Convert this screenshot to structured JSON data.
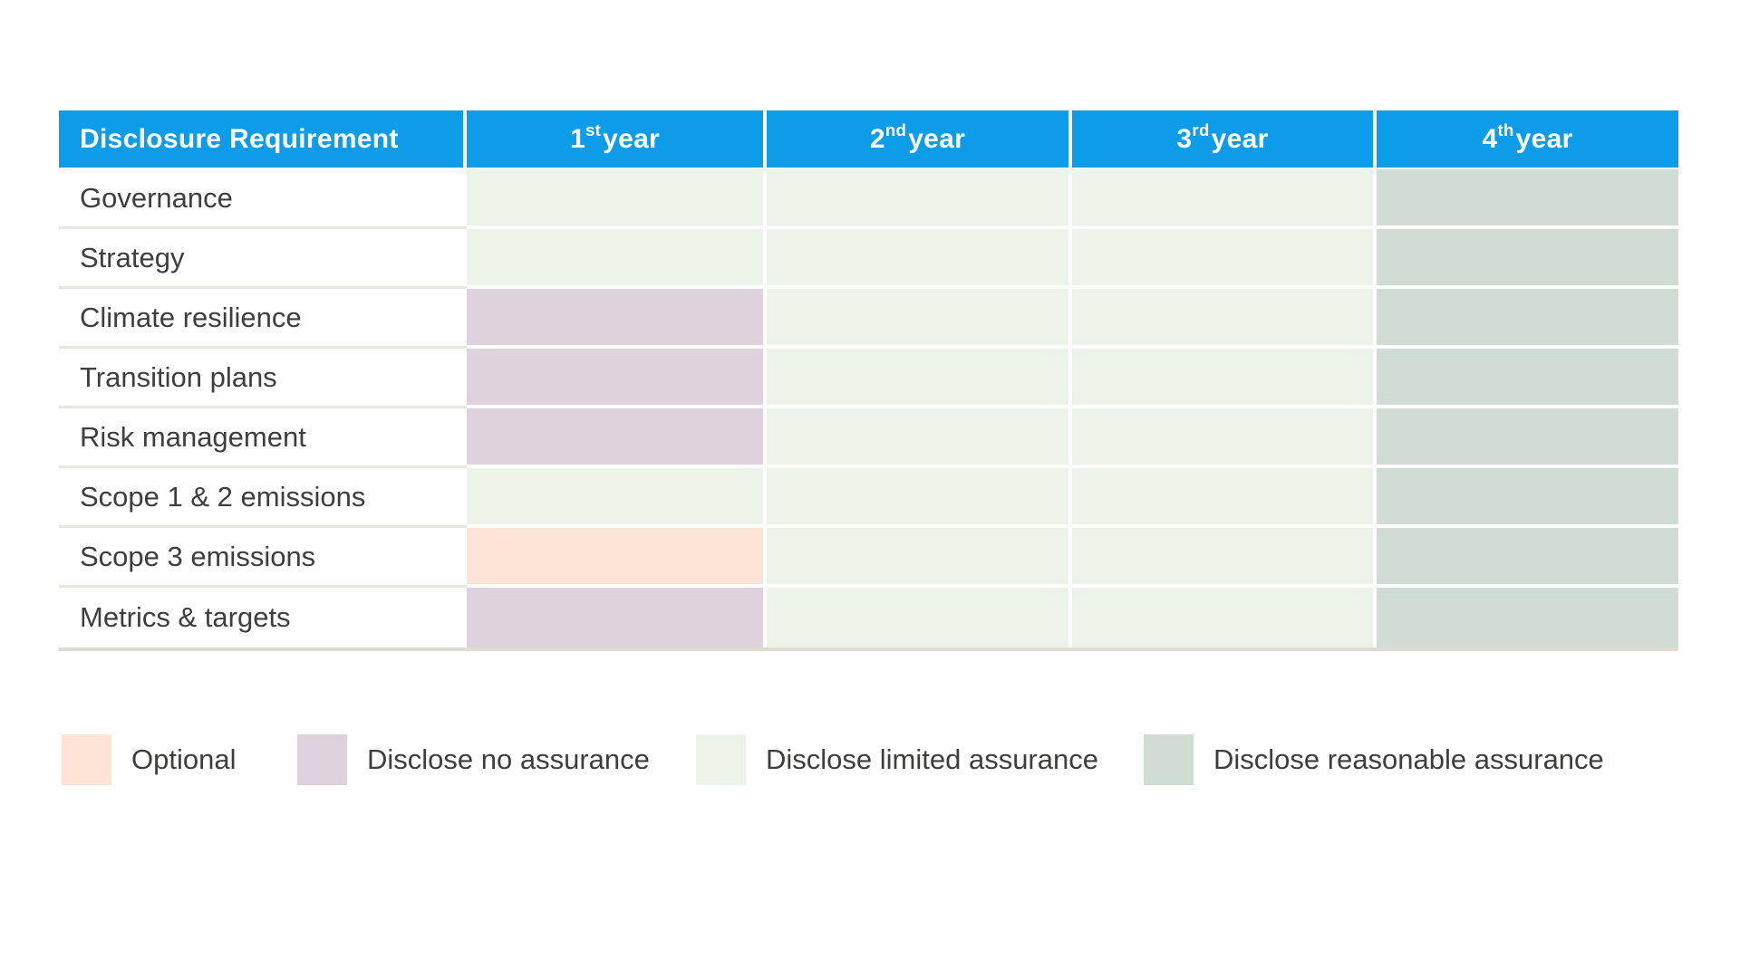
{
  "colors": {
    "header_blue": "#0d9ce7",
    "optional": "#fce4d7",
    "none": "#ded3dc",
    "limited": "#ecf3e8",
    "reasonable": "#d1dcd5",
    "text": "#3e3e3d",
    "row_separator": "#e9e6e0",
    "table_bottom_border": "#dedbd3"
  },
  "table": {
    "header": {
      "requirement_label": "Disclosure Requirement",
      "years": [
        {
          "num": "1",
          "suffix": "st",
          "word": " year"
        },
        {
          "num": "2",
          "suffix": "nd",
          "word": " year"
        },
        {
          "num": "3",
          "suffix": "rd",
          "word": " year"
        },
        {
          "num": "4",
          "suffix": "th",
          "word": " year"
        }
      ]
    },
    "rows": [
      {
        "label": "Governance",
        "cells": [
          "limited",
          "limited",
          "limited",
          "reasonable"
        ]
      },
      {
        "label": "Strategy",
        "cells": [
          "limited",
          "limited",
          "limited",
          "reasonable"
        ]
      },
      {
        "label": "Climate resilience",
        "cells": [
          "none",
          "limited",
          "limited",
          "reasonable"
        ]
      },
      {
        "label": "Transition plans",
        "cells": [
          "none",
          "limited",
          "limited",
          "reasonable"
        ]
      },
      {
        "label": "Risk management",
        "cells": [
          "none",
          "limited",
          "limited",
          "reasonable"
        ]
      },
      {
        "label": "Scope 1 & 2 emissions",
        "cells": [
          "limited",
          "limited",
          "limited",
          "reasonable"
        ]
      },
      {
        "label": "Scope 3 emissions",
        "cells": [
          "optional",
          "limited",
          "limited",
          "reasonable"
        ]
      },
      {
        "label": "Metrics & targets",
        "cells": [
          "none",
          "limited",
          "limited",
          "reasonable"
        ]
      }
    ]
  },
  "legend": [
    {
      "key": "optional",
      "label": "Optional"
    },
    {
      "key": "none",
      "label": "Disclose no assurance"
    },
    {
      "key": "limited",
      "label": "Disclose limited assurance"
    },
    {
      "key": "reasonable",
      "label": "Disclose reasonable assurance"
    }
  ],
  "chart_data": {
    "type": "table",
    "title": "Disclosure requirements phase-in with assurance levels by year",
    "columns": [
      "Disclosure Requirement",
      "1st year",
      "2nd year",
      "3rd year",
      "4th year"
    ],
    "rows": [
      [
        "Governance",
        "Disclose limited assurance",
        "Disclose limited assurance",
        "Disclose limited assurance",
        "Disclose reasonable assurance"
      ],
      [
        "Strategy",
        "Disclose limited assurance",
        "Disclose limited assurance",
        "Disclose limited assurance",
        "Disclose reasonable assurance"
      ],
      [
        "Climate resilience",
        "Disclose no assurance",
        "Disclose limited assurance",
        "Disclose limited assurance",
        "Disclose reasonable assurance"
      ],
      [
        "Transition plans",
        "Disclose no assurance",
        "Disclose limited assurance",
        "Disclose limited assurance",
        "Disclose reasonable assurance"
      ],
      [
        "Risk management",
        "Disclose no assurance",
        "Disclose limited assurance",
        "Disclose limited assurance",
        "Disclose reasonable assurance"
      ],
      [
        "Scope 1 & 2 emissions",
        "Disclose limited assurance",
        "Disclose limited assurance",
        "Disclose limited assurance",
        "Disclose reasonable assurance"
      ],
      [
        "Scope 3 emissions",
        "Optional",
        "Disclose limited assurance",
        "Disclose limited assurance",
        "Disclose reasonable assurance"
      ],
      [
        "Metrics & targets",
        "Disclose no assurance",
        "Disclose limited assurance",
        "Disclose limited assurance",
        "Disclose reasonable assurance"
      ]
    ],
    "legend_entries": [
      "Optional",
      "Disclose no assurance",
      "Disclose limited assurance",
      "Disclose reasonable assurance"
    ],
    "layout": {
      "legend_position": "bottom",
      "header_color": "#0d9ce7"
    }
  }
}
